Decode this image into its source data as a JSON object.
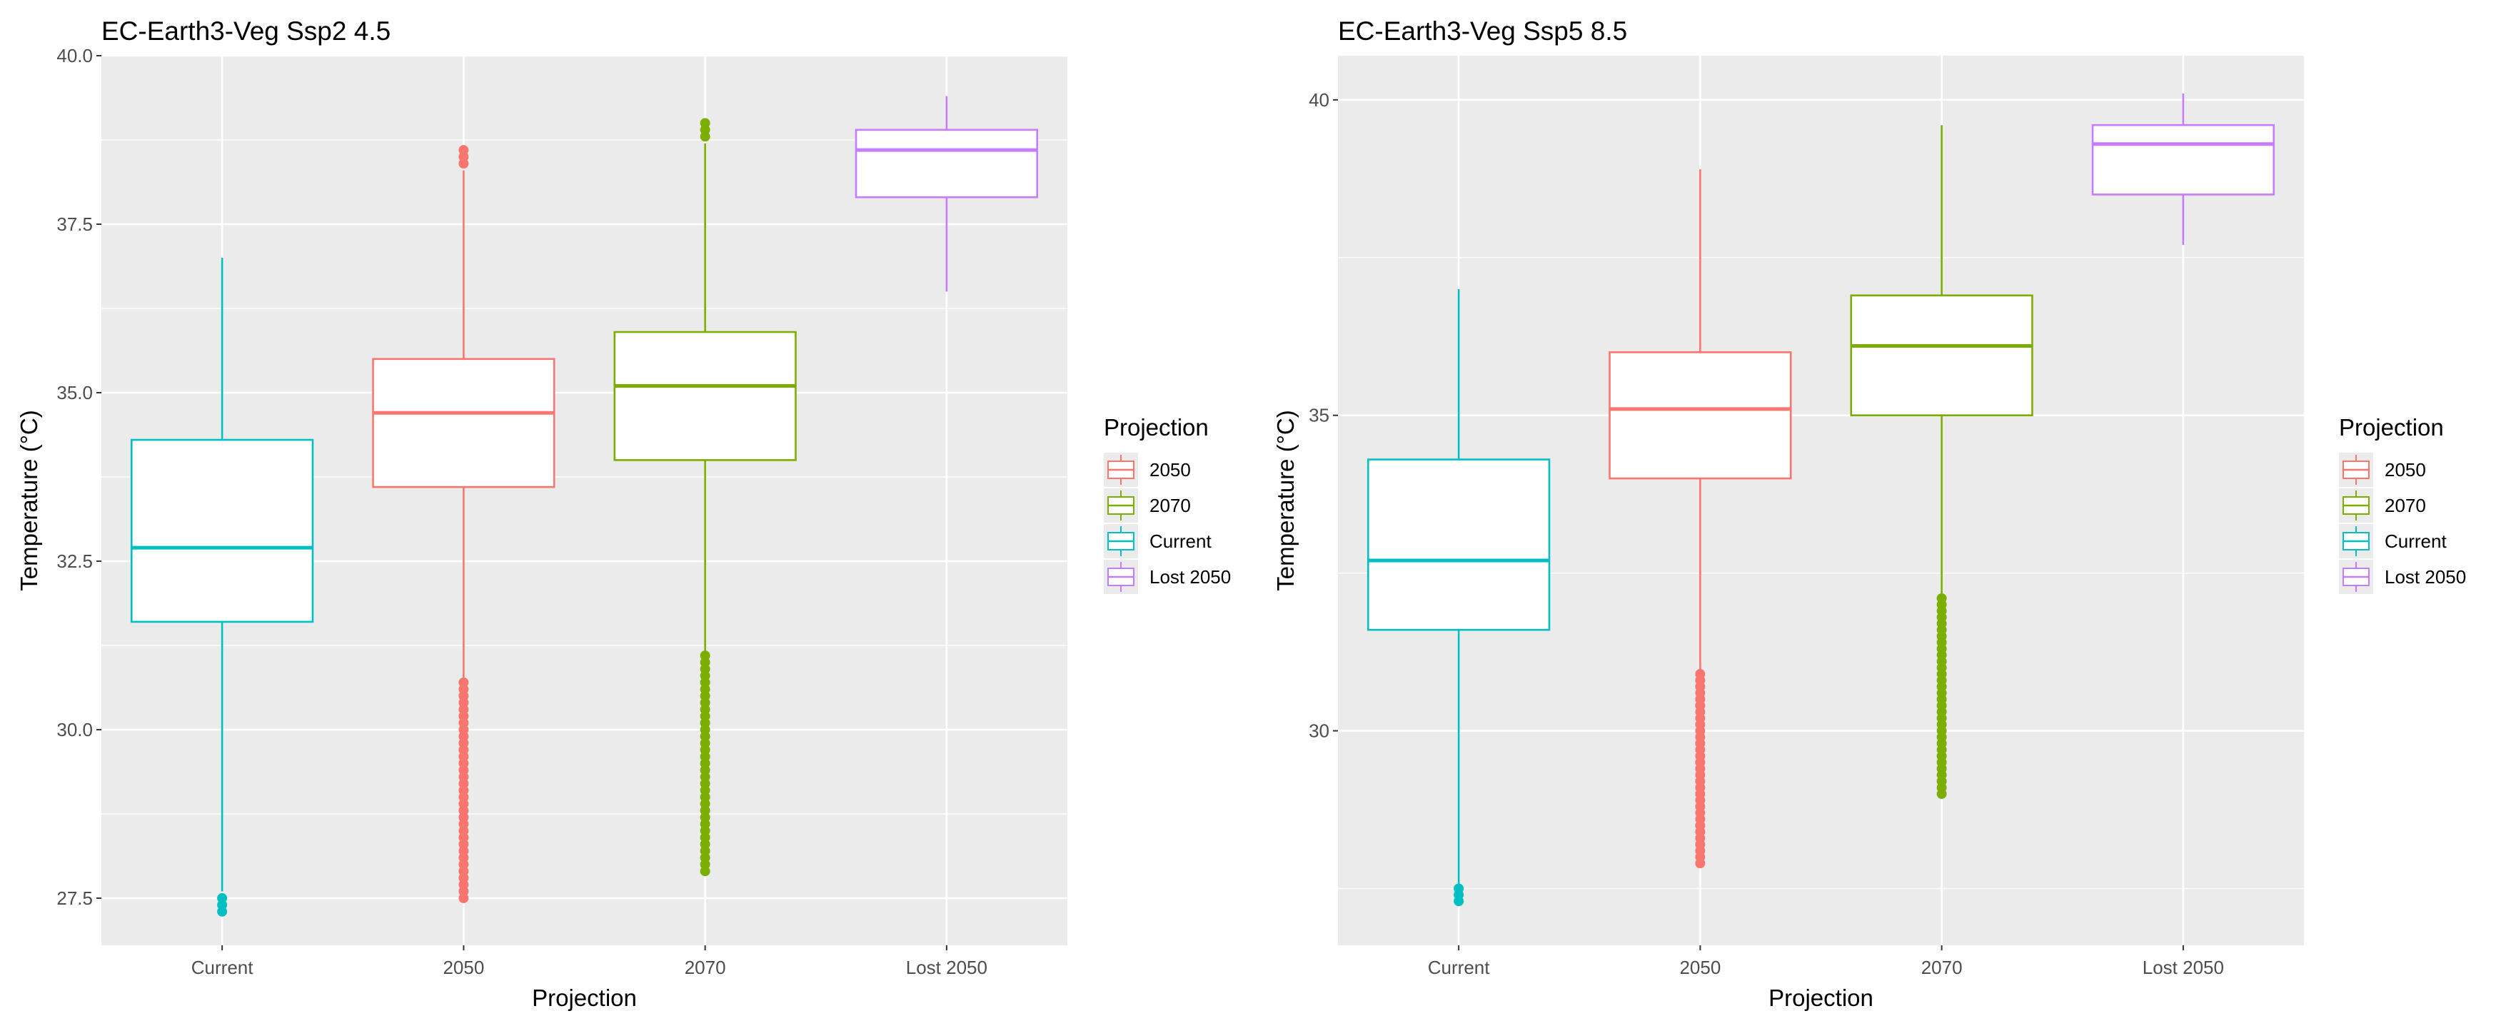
{
  "chart_data": [
    {
      "type": "boxplot",
      "title": "EC-Earth3-Veg Ssp2 4.5",
      "xlabel": "Projection",
      "ylabel": "Temperature (°C)",
      "ylim": [
        26.8,
        40.0
      ],
      "yticks": [
        27.5,
        30.0,
        32.5,
        35.0,
        37.5,
        40.0
      ],
      "ytick_labels": [
        "27.5",
        "30.0",
        "32.5",
        "35.0",
        "37.5",
        "40.0"
      ],
      "categories": [
        "Current",
        "2050",
        "2070",
        "Lost 2050"
      ],
      "series": [
        {
          "name": "Current",
          "color": "#00BFC4",
          "lower_whisker": 27.6,
          "q1": 31.6,
          "median": 32.7,
          "q3": 34.3,
          "upper_whisker": 37.0,
          "outliers": [
            27.3,
            27.4,
            27.5
          ]
        },
        {
          "name": "2050",
          "color": "#F8766D",
          "lower_whisker": 30.7,
          "q1": 33.6,
          "median": 34.7,
          "q3": 35.5,
          "upper_whisker": 38.3,
          "outliers": [
            38.4,
            38.5,
            38.6,
            27.5,
            27.6,
            27.7,
            27.8,
            27.9,
            28.0,
            28.1,
            28.2,
            28.3,
            28.4,
            28.5,
            28.6,
            28.7,
            28.8,
            28.9,
            29.0,
            29.1,
            29.2,
            29.3,
            29.4,
            29.5,
            29.6,
            29.7,
            29.8,
            29.9,
            30.0,
            30.1,
            30.2,
            30.3,
            30.4,
            30.5,
            30.6,
            30.7
          ]
        },
        {
          "name": "2070",
          "color": "#7CAE00",
          "lower_whisker": 31.1,
          "q1": 34.0,
          "median": 35.1,
          "q3": 35.9,
          "upper_whisker": 38.7,
          "outliers": [
            38.8,
            38.9,
            39.0,
            27.9,
            28.0,
            28.1,
            28.2,
            28.3,
            28.4,
            28.5,
            28.6,
            28.7,
            28.8,
            28.9,
            29.0,
            29.1,
            29.2,
            29.3,
            29.4,
            29.5,
            29.6,
            29.7,
            29.8,
            29.9,
            30.0,
            30.1,
            30.2,
            30.3,
            30.4,
            30.5,
            30.6,
            30.7,
            30.8,
            30.9,
            31.0,
            31.1
          ]
        },
        {
          "name": "Lost 2050",
          "color": "#C77CFF",
          "lower_whisker": 36.5,
          "q1": 37.9,
          "median": 38.6,
          "q3": 38.9,
          "upper_whisker": 39.4,
          "outliers": []
        }
      ]
    },
    {
      "type": "boxplot",
      "title": "EC-Earth3-Veg Ssp5 8.5",
      "xlabel": "Projection",
      "ylabel": "Temperature (°C)",
      "ylim": [
        26.6,
        40.7
      ],
      "yticks": [
        30,
        35,
        40
      ],
      "ytick_labels": [
        "30",
        "35",
        "40"
      ],
      "categories": [
        "Current",
        "2050",
        "2070",
        "Lost 2050"
      ],
      "series": [
        {
          "name": "Current",
          "color": "#00BFC4",
          "lower_whisker": 27.5,
          "q1": 31.6,
          "median": 32.7,
          "q3": 34.3,
          "upper_whisker": 37.0,
          "outliers": [
            27.3,
            27.4,
            27.5
          ]
        },
        {
          "name": "2050",
          "color": "#F8766D",
          "lower_whisker": 30.9,
          "q1": 34.0,
          "median": 35.1,
          "q3": 36.0,
          "upper_whisker": 38.9,
          "outliers": [
            27.9,
            28.0,
            28.1,
            28.2,
            28.3,
            28.4,
            28.5,
            28.6,
            28.7,
            28.8,
            28.9,
            29.0,
            29.1,
            29.2,
            29.3,
            29.4,
            29.5,
            29.6,
            29.7,
            29.8,
            29.9,
            30.0,
            30.1,
            30.2,
            30.3,
            30.4,
            30.5,
            30.6,
            30.7,
            30.8,
            30.9
          ]
        },
        {
          "name": "2070",
          "color": "#7CAE00",
          "lower_whisker": 32.1,
          "q1": 35.0,
          "median": 36.1,
          "q3": 36.9,
          "upper_whisker": 39.6,
          "outliers": [
            29.0,
            29.1,
            29.2,
            29.3,
            29.4,
            29.5,
            29.6,
            29.7,
            29.8,
            29.9,
            30.0,
            30.1,
            30.2,
            30.3,
            30.4,
            30.5,
            30.6,
            30.7,
            30.8,
            30.9,
            31.0,
            31.1,
            31.2,
            31.3,
            31.4,
            31.5,
            31.6,
            31.7,
            31.8,
            31.9,
            32.0,
            32.1
          ]
        },
        {
          "name": "Lost 2050",
          "color": "#C77CFF",
          "lower_whisker": 37.7,
          "q1": 38.5,
          "median": 39.3,
          "q3": 39.6,
          "upper_whisker": 40.1,
          "outliers": []
        }
      ]
    }
  ],
  "legend": {
    "title": "Projection",
    "items": [
      {
        "label": "2050",
        "color": "#F8766D"
      },
      {
        "label": "2070",
        "color": "#7CAE00"
      },
      {
        "label": "Current",
        "color": "#00BFC4"
      },
      {
        "label": "Lost 2050",
        "color": "#C77CFF"
      }
    ]
  }
}
